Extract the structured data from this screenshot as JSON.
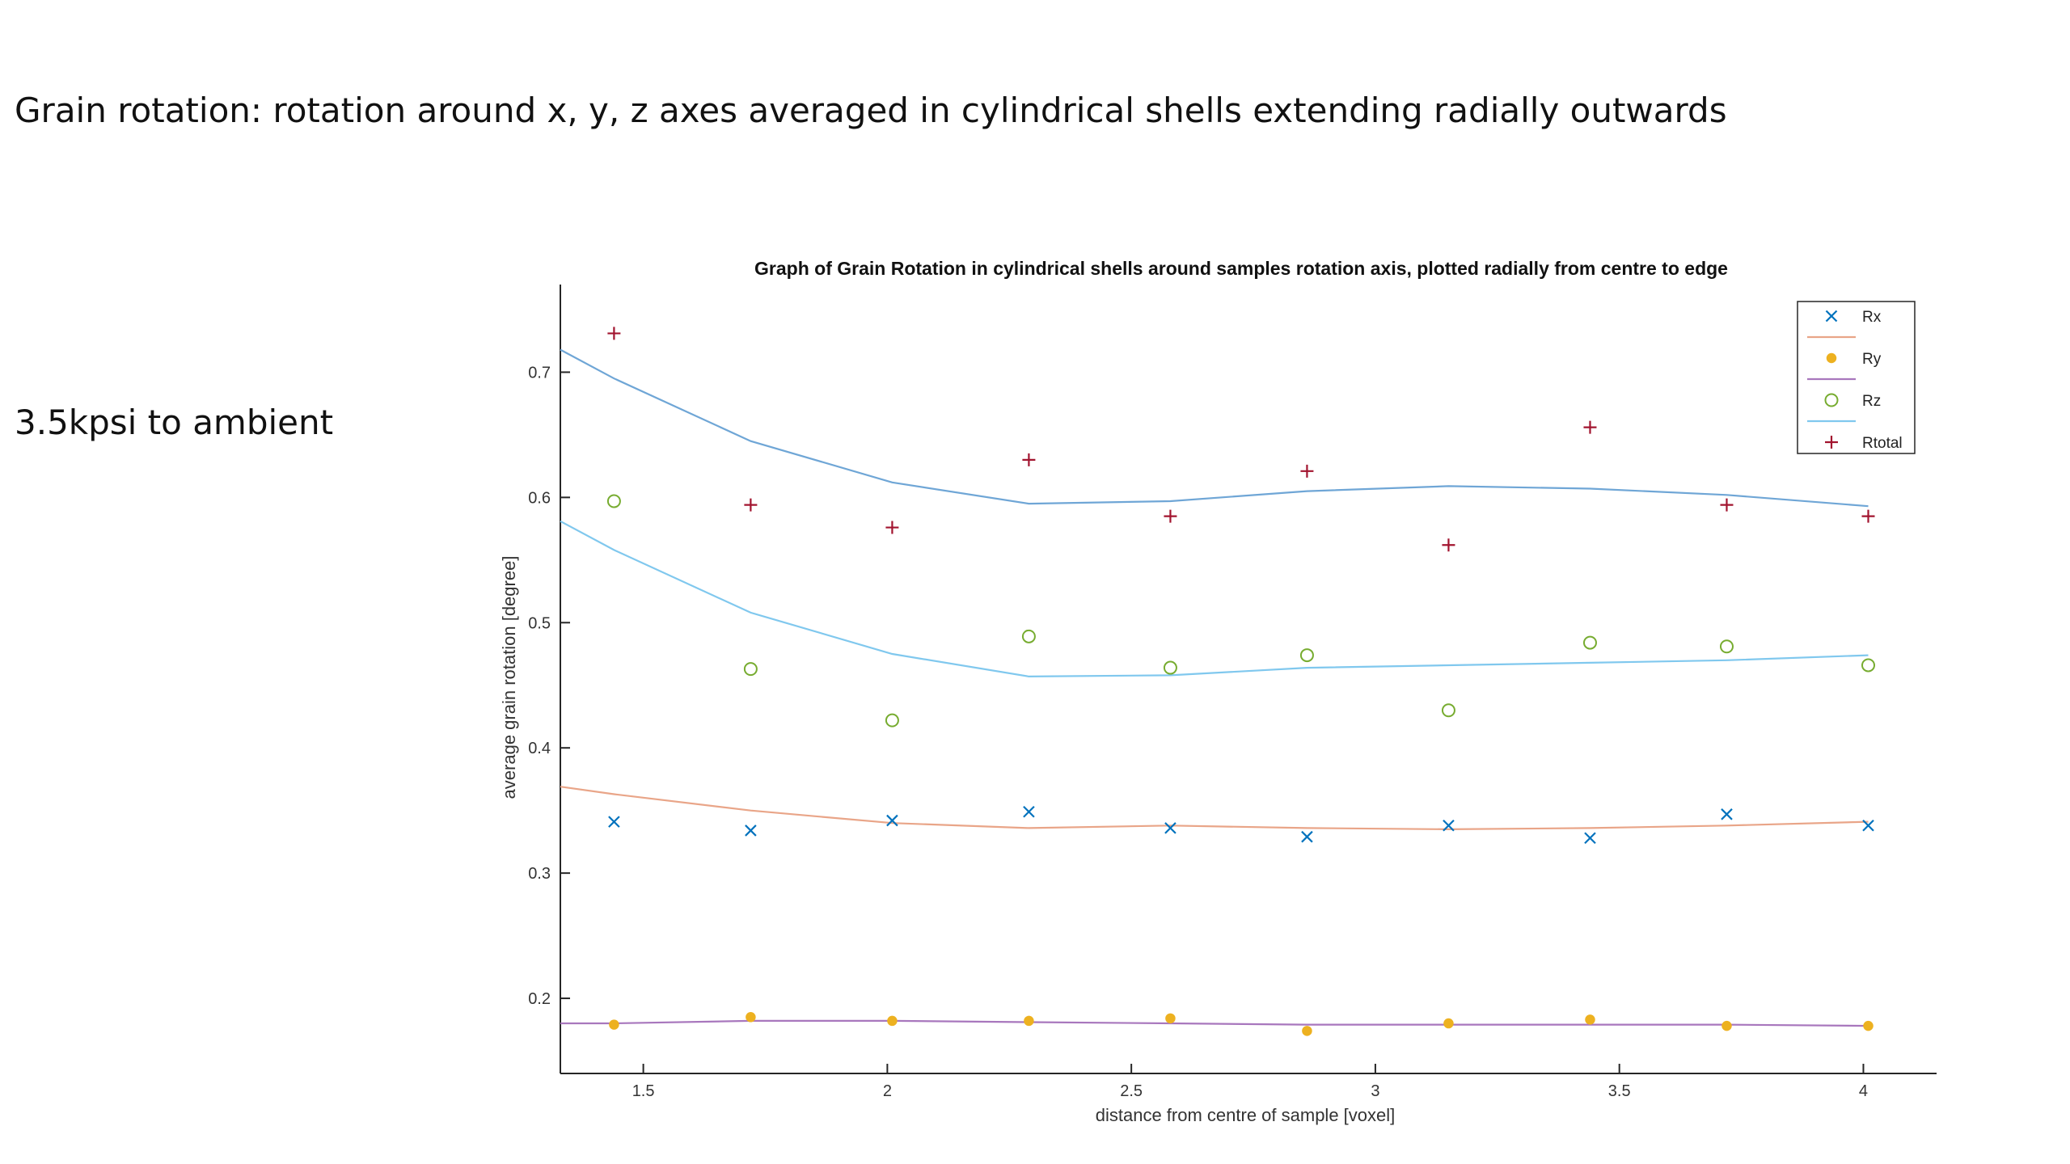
{
  "slide": {
    "title": "Grain rotation: rotation around x, y, z axes averaged in cylindrical shells extending radially outwards",
    "subtitle": "3.5kpsi to ambient"
  },
  "chart_data": {
    "type": "scatter",
    "title": "Graph of Grain Rotation in cylindrical shells around  samples rotation axis, plotted radially from centre to edge",
    "xlabel": "distance from centre of sample [voxel]",
    "ylabel": "average grain rotation [degree]",
    "xlim": [
      1.33,
      4.15
    ],
    "ylim": [
      0.14,
      0.77
    ],
    "xticks": [
      1.5,
      2,
      2.5,
      3,
      3.5,
      4
    ],
    "xtick_labels": [
      "1.5",
      "2",
      "2.5",
      "3",
      "3.5",
      "4"
    ],
    "yticks": [
      0.2,
      0.3,
      0.4,
      0.5,
      0.6,
      0.7
    ],
    "ytick_labels": [
      "0.2",
      "0.3",
      "0.4",
      "0.5",
      "0.6",
      "0.7"
    ],
    "grid": false,
    "legend_position": "top-right",
    "x": [
      1.44,
      1.72,
      2.01,
      2.29,
      2.58,
      2.86,
      3.15,
      3.44,
      3.72,
      4.01
    ],
    "series": [
      {
        "name": "Rx",
        "marker": "x",
        "color": "#0072bd",
        "values": [
          0.341,
          0.334,
          0.342,
          0.349,
          0.336,
          0.329,
          0.338,
          0.328,
          0.347,
          0.338
        ],
        "fit_color": "#e9a588",
        "fit": {
          "x": [
            1.33,
            1.44,
            1.72,
            2.01,
            2.29,
            2.58,
            2.86,
            3.15,
            3.44,
            3.72,
            4.01
          ],
          "y": [
            0.369,
            0.363,
            0.35,
            0.34,
            0.336,
            0.338,
            0.336,
            0.335,
            0.336,
            0.338,
            0.341
          ]
        }
      },
      {
        "name": "Ry",
        "marker": "*",
        "color": "#edb120",
        "values": [
          0.179,
          0.185,
          0.182,
          0.182,
          0.184,
          0.174,
          0.18,
          0.183,
          0.178,
          0.178
        ],
        "fit_color": "#a877bd",
        "fit": {
          "x": [
            1.33,
            1.44,
            1.72,
            2.01,
            2.29,
            2.58,
            2.86,
            3.15,
            3.44,
            3.72,
            4.01
          ],
          "y": [
            0.18,
            0.18,
            0.182,
            0.182,
            0.181,
            0.18,
            0.179,
            0.179,
            0.179,
            0.179,
            0.178
          ]
        }
      },
      {
        "name": "Rz",
        "marker": "o",
        "color": "#77ac30",
        "values": [
          0.597,
          0.463,
          0.422,
          0.489,
          0.464,
          0.474,
          0.43,
          0.484,
          0.481,
          0.466
        ],
        "fit_color": "#80c8ee",
        "fit": {
          "x": [
            1.33,
            1.44,
            1.72,
            2.01,
            2.29,
            2.58,
            2.86,
            3.15,
            3.44,
            3.72,
            4.01
          ],
          "y": [
            0.581,
            0.558,
            0.508,
            0.475,
            0.457,
            0.458,
            0.464,
            0.466,
            0.468,
            0.47,
            0.474
          ]
        }
      },
      {
        "name": "Rtotal",
        "marker": "+",
        "color": "#a2142f",
        "values": [
          0.731,
          0.594,
          0.576,
          0.63,
          0.585,
          0.621,
          0.562,
          0.656,
          0.594,
          0.585
        ],
        "fit_color": "#6fa6d6",
        "fit": {
          "x": [
            1.33,
            1.44,
            1.72,
            2.01,
            2.29,
            2.58,
            2.86,
            3.15,
            3.44,
            3.72,
            4.01
          ],
          "y": [
            0.718,
            0.695,
            0.645,
            0.612,
            0.595,
            0.597,
            0.605,
            0.609,
            0.607,
            0.602,
            0.593
          ]
        }
      }
    ]
  }
}
